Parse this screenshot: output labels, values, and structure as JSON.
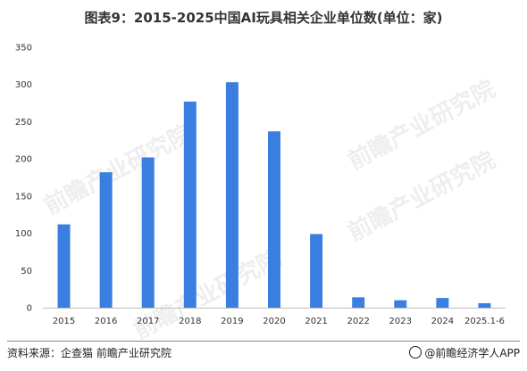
{
  "title": "图表9：2015-2025中国AI玩具相关企业单位数(单位：家)",
  "source": "资料来源：企查猫 前瞻产业研究院",
  "brand": "@前瞻经济学人APP",
  "watermark": "前瞻产业研究院",
  "colors": {
    "bar": "#3a7fe0",
    "axis": "#bdbdbd",
    "text": "#333333"
  },
  "chart_data": {
    "type": "bar",
    "title": "图表9：2015-2025中国AI玩具相关企业单位数(单位：家)",
    "xlabel": "",
    "ylabel": "",
    "categories": [
      "2015",
      "2016",
      "2017",
      "2018",
      "2019",
      "2020",
      "2021",
      "2022",
      "2023",
      "2024",
      "2025.1-6"
    ],
    "values": [
      112,
      182,
      202,
      277,
      303,
      237,
      99,
      14,
      10,
      13,
      6
    ],
    "ylim": [
      0,
      350
    ],
    "yticks": [
      0,
      50,
      100,
      150,
      200,
      250,
      300,
      350
    ],
    "grid": false,
    "legend": "none"
  }
}
